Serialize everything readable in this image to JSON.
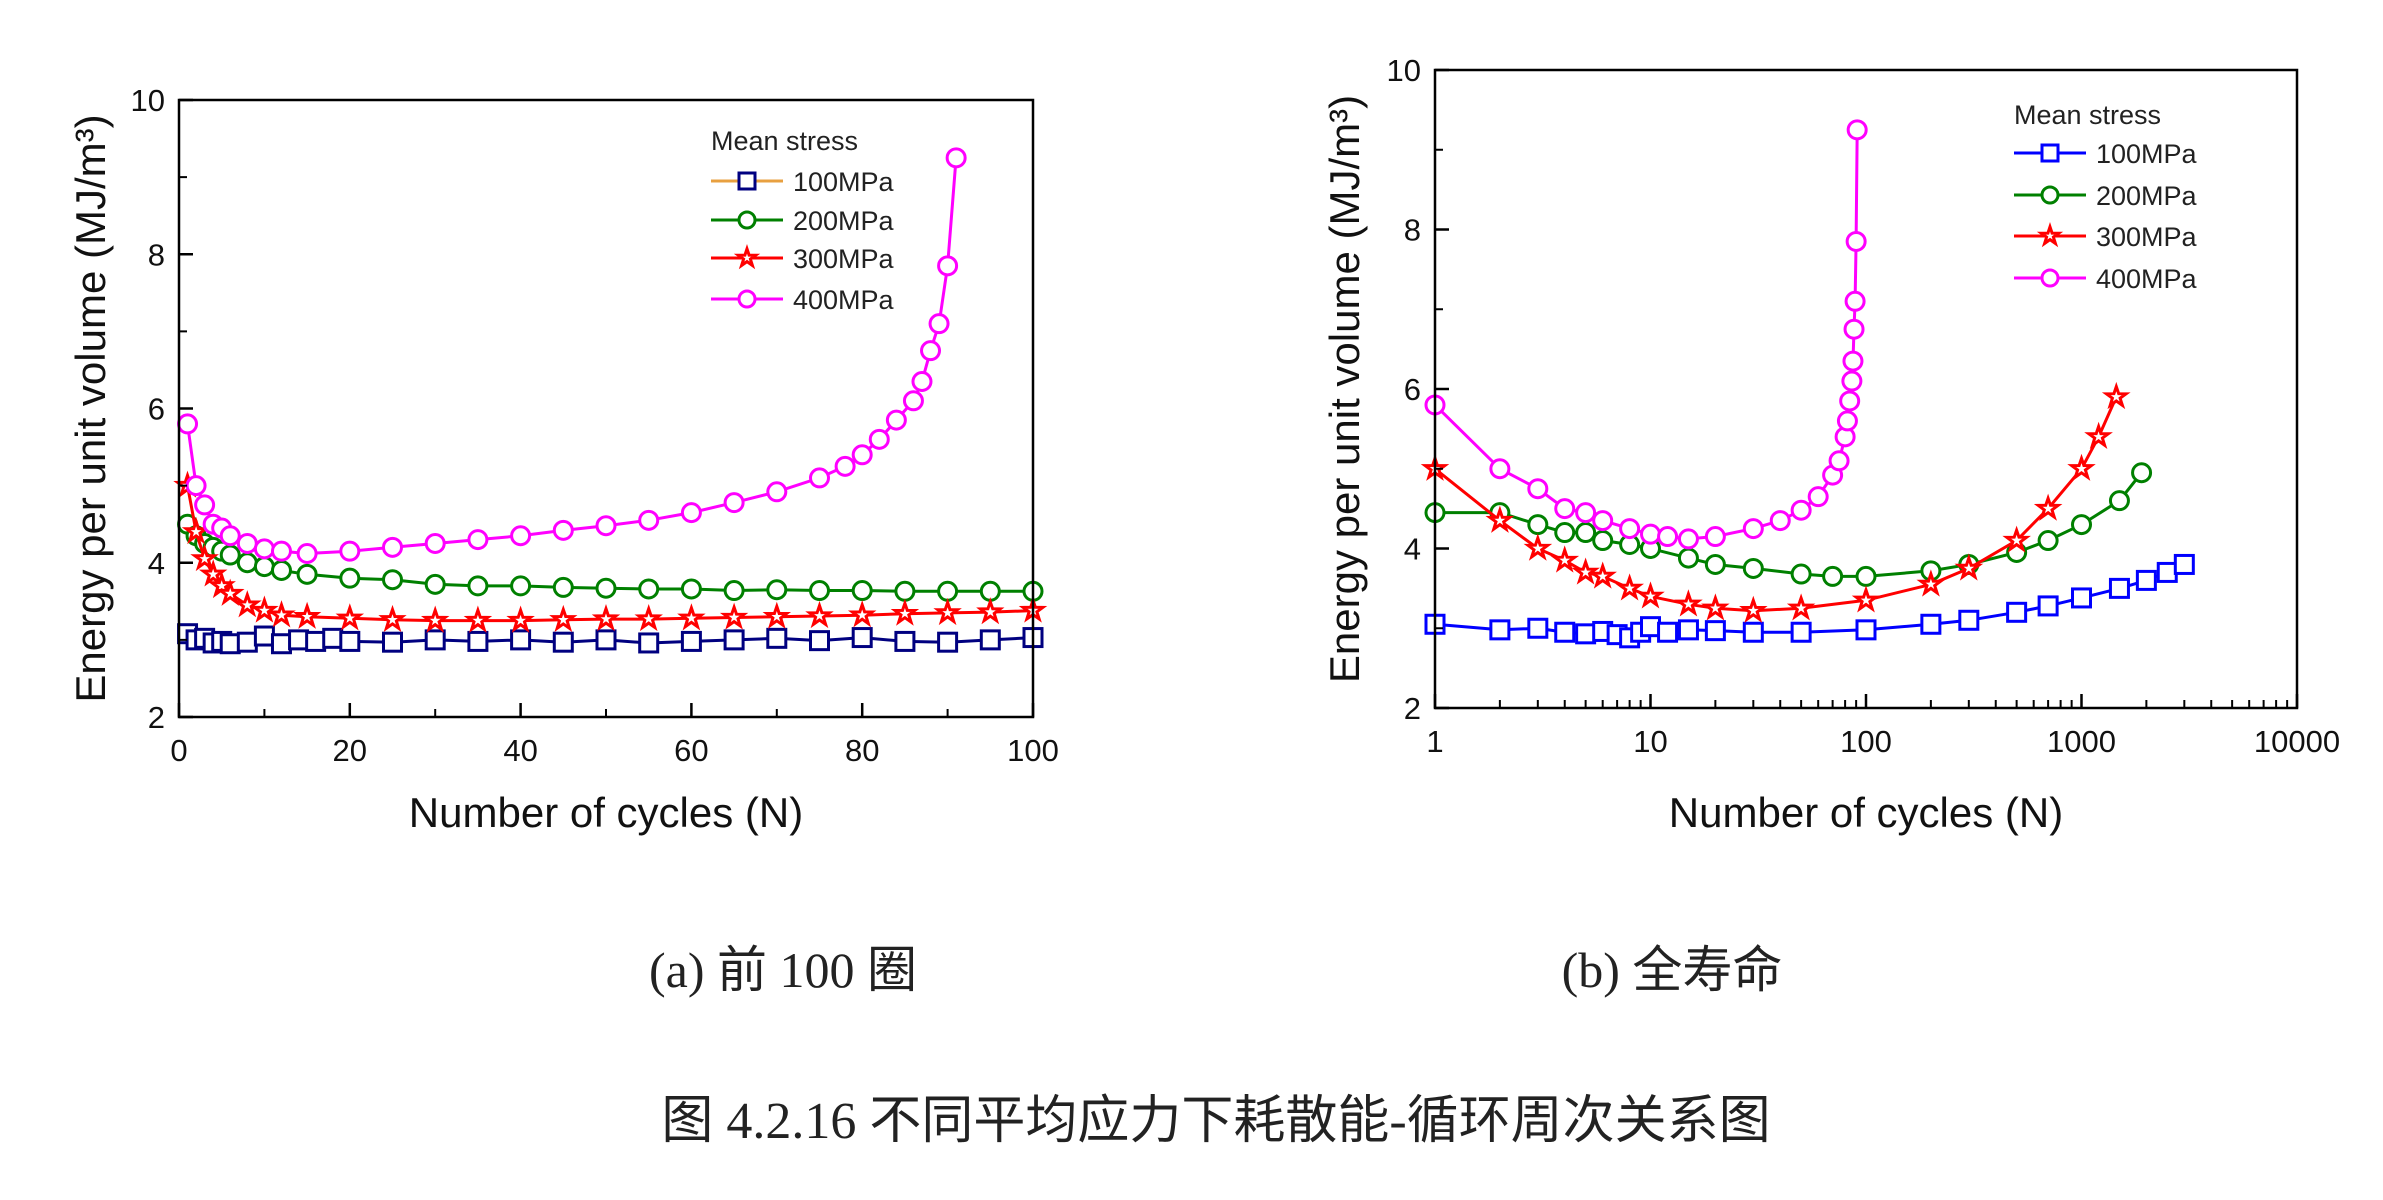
{
  "colors": {
    "s100_left_line": "#e8a040",
    "s100_left_marker": "#000080",
    "s100_right": "#0000ff",
    "s200": "#008000",
    "s300": "#ff0000",
    "s400": "#ff00ff"
  },
  "captions": {
    "a": "(a)  前 100 圈",
    "b": "(b)  全寿命",
    "figure": "图 4.2.16 不同平均应力下耗散能-循环周次关系图"
  },
  "chart_data": [
    {
      "type": "line",
      "xlabel": "Number of cycles (N)",
      "ylabel": "Energy per unit volume (MJ/m³)",
      "xlim": [
        0,
        100
      ],
      "ylim": [
        2,
        10
      ],
      "xticks": [
        "0",
        "20",
        "40",
        "60",
        "80",
        "100"
      ],
      "yticks": [
        "2",
        "4",
        "6",
        "8",
        "10"
      ],
      "legend_title": "Mean stress",
      "legend_position": "top-right",
      "series": [
        {
          "name": "100MPa",
          "marker": "square",
          "x": [
            1,
            2,
            3,
            4,
            5,
            6,
            8,
            10,
            12,
            14,
            16,
            18,
            20,
            25,
            30,
            35,
            40,
            45,
            50,
            55,
            60,
            65,
            70,
            75,
            80,
            85,
            90,
            95,
            100
          ],
          "y": [
            3.08,
            3.0,
            3.02,
            2.96,
            2.98,
            2.95,
            2.97,
            3.05,
            2.95,
            3.0,
            2.98,
            3.02,
            2.98,
            2.97,
            3.0,
            2.98,
            3.0,
            2.97,
            3.0,
            2.96,
            2.98,
            3.0,
            3.02,
            2.99,
            3.03,
            2.98,
            2.97,
            3.0,
            3.03
          ]
        },
        {
          "name": "200MPa",
          "marker": "circle",
          "x": [
            1,
            2,
            3,
            4,
            5,
            6,
            8,
            10,
            12,
            15,
            20,
            25,
            30,
            35,
            40,
            45,
            50,
            55,
            60,
            65,
            70,
            75,
            80,
            85,
            90,
            95,
            100
          ],
          "y": [
            4.5,
            4.35,
            4.25,
            4.2,
            4.15,
            4.1,
            4.0,
            3.95,
            3.9,
            3.85,
            3.8,
            3.78,
            3.72,
            3.7,
            3.7,
            3.68,
            3.67,
            3.66,
            3.66,
            3.64,
            3.65,
            3.64,
            3.64,
            3.63,
            3.63,
            3.63,
            3.63
          ]
        },
        {
          "name": "300MPa",
          "marker": "star",
          "x": [
            1,
            2,
            3,
            4,
            5,
            6,
            8,
            10,
            12,
            15,
            20,
            25,
            30,
            35,
            40,
            45,
            50,
            55,
            60,
            65,
            70,
            75,
            80,
            85,
            90,
            95,
            100
          ],
          "y": [
            5.0,
            4.4,
            4.05,
            3.85,
            3.7,
            3.6,
            3.45,
            3.38,
            3.32,
            3.3,
            3.28,
            3.26,
            3.25,
            3.25,
            3.25,
            3.26,
            3.27,
            3.27,
            3.28,
            3.29,
            3.3,
            3.31,
            3.32,
            3.34,
            3.35,
            3.36,
            3.38
          ]
        },
        {
          "name": "400MPa",
          "marker": "circle",
          "x": [
            1,
            2,
            3,
            4,
            5,
            6,
            8,
            10,
            12,
            15,
            20,
            25,
            30,
            35,
            40,
            45,
            50,
            55,
            60,
            65,
            70,
            75,
            78,
            80,
            82,
            84,
            86,
            87,
            88,
            89,
            90,
            91
          ],
          "y": [
            5.8,
            5.0,
            4.75,
            4.5,
            4.45,
            4.35,
            4.25,
            4.18,
            4.15,
            4.12,
            4.15,
            4.2,
            4.25,
            4.3,
            4.35,
            4.42,
            4.48,
            4.55,
            4.65,
            4.78,
            4.92,
            5.1,
            5.25,
            5.4,
            5.6,
            5.85,
            6.1,
            6.35,
            6.75,
            7.1,
            7.85,
            9.25
          ]
        }
      ]
    },
    {
      "type": "line",
      "xscale": "log",
      "xlabel": "Number of cycles (N)",
      "ylabel": "Energy per unit volume (MJ/m³)",
      "xlim": [
        1,
        10000
      ],
      "ylim": [
        2,
        10
      ],
      "xticks": [
        "1",
        "10",
        "100",
        "1000",
        "10000"
      ],
      "yticks": [
        "2",
        "4",
        "6",
        "8",
        "10"
      ],
      "legend_title": "Mean stress",
      "legend_position": "top-right",
      "series": [
        {
          "name": "100MPa",
          "marker": "square",
          "x": [
            1,
            2,
            3,
            4,
            5,
            6,
            7,
            8,
            9,
            10,
            12,
            15,
            20,
            30,
            50,
            100,
            200,
            300,
            500,
            700,
            1000,
            1500,
            2000,
            2500,
            3000
          ],
          "y": [
            3.05,
            2.98,
            3.0,
            2.95,
            2.93,
            2.96,
            2.92,
            2.88,
            2.95,
            3.02,
            2.95,
            2.98,
            2.97,
            2.95,
            2.95,
            2.98,
            3.05,
            3.1,
            3.2,
            3.28,
            3.38,
            3.5,
            3.6,
            3.7,
            3.8
          ]
        },
        {
          "name": "200MPa",
          "marker": "circle",
          "x": [
            1,
            2,
            3,
            4,
            5,
            6,
            8,
            10,
            15,
            20,
            30,
            50,
            70,
            100,
            200,
            300,
            500,
            700,
            1000,
            1500,
            1900
          ],
          "y": [
            4.45,
            4.45,
            4.3,
            4.2,
            4.2,
            4.1,
            4.05,
            4.0,
            3.88,
            3.8,
            3.75,
            3.68,
            3.65,
            3.65,
            3.72,
            3.8,
            3.95,
            4.1,
            4.3,
            4.6,
            4.95
          ]
        },
        {
          "name": "300MPa",
          "marker": "star",
          "x": [
            1,
            2,
            3,
            4,
            5,
            6,
            8,
            10,
            15,
            20,
            30,
            50,
            100,
            200,
            300,
            500,
            700,
            1000,
            1200,
            1450
          ],
          "y": [
            5.0,
            4.35,
            4.0,
            3.85,
            3.7,
            3.65,
            3.5,
            3.4,
            3.3,
            3.25,
            3.22,
            3.25,
            3.35,
            3.55,
            3.75,
            4.1,
            4.5,
            5.0,
            5.4,
            5.9
          ]
        },
        {
          "name": "400MPa",
          "marker": "circle",
          "x": [
            1,
            2,
            3,
            4,
            5,
            6,
            8,
            10,
            12,
            15,
            20,
            30,
            40,
            50,
            60,
            70,
            75,
            80,
            82,
            84,
            86,
            87,
            88,
            89,
            90,
            91
          ],
          "y": [
            5.8,
            5.0,
            4.75,
            4.5,
            4.45,
            4.35,
            4.25,
            4.18,
            4.15,
            4.12,
            4.15,
            4.25,
            4.35,
            4.48,
            4.65,
            4.92,
            5.1,
            5.4,
            5.6,
            5.85,
            6.1,
            6.35,
            6.75,
            7.1,
            7.85,
            9.25
          ]
        }
      ]
    }
  ]
}
